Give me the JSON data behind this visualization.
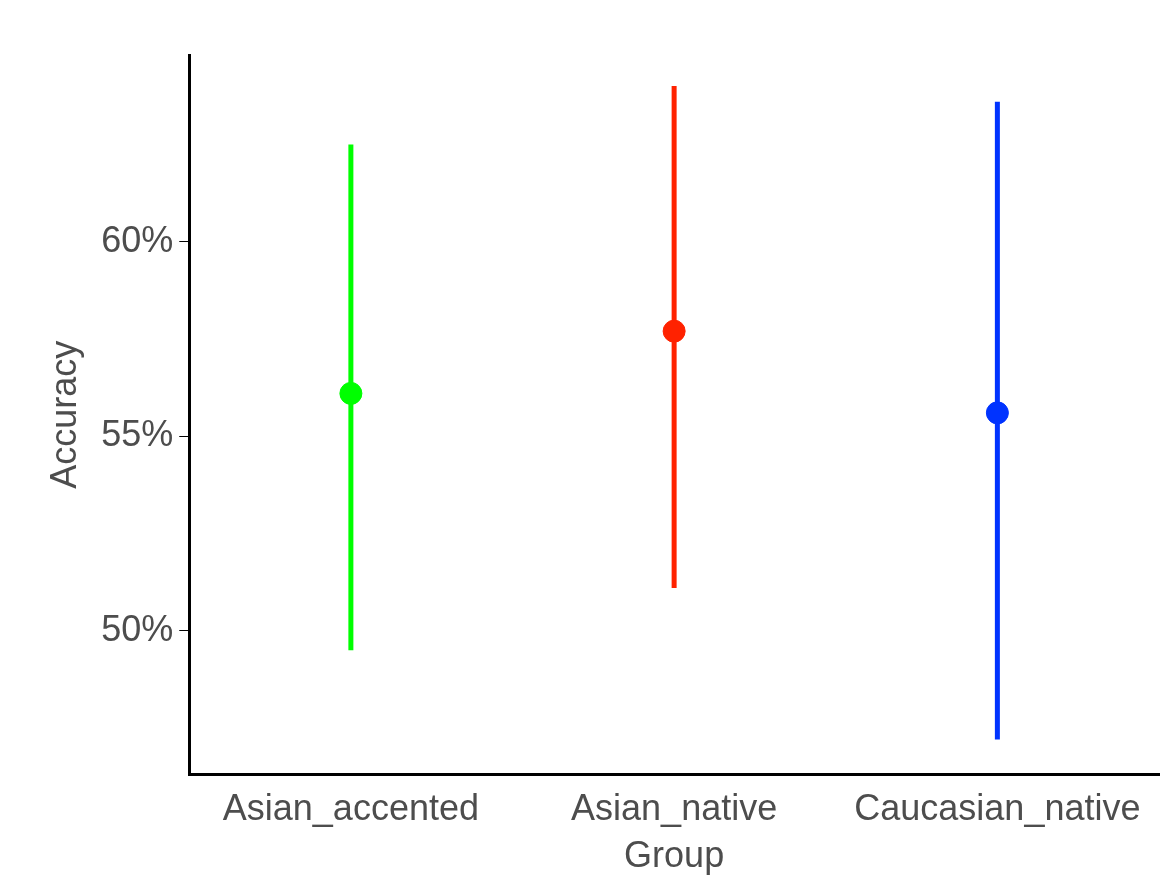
{
  "chart_data": {
    "type": "scatter",
    "xlabel": "Group",
    "ylabel": "Accuracy",
    "categories": [
      "Asian_accented",
      "Asian_native",
      "Caucasian_native"
    ],
    "values": [
      56.1,
      57.7,
      55.6
    ],
    "errors": [
      [
        49.5,
        62.5
      ],
      [
        51.1,
        64.0
      ],
      [
        47.2,
        63.6
      ]
    ],
    "colors": [
      "#00ff00",
      "#ff2200",
      "#0033ff"
    ],
    "ylim": [
      46.3,
      64.8
    ],
    "yticks": [
      {
        "value": 50,
        "label": "50%"
      },
      {
        "value": 55,
        "label": "55%"
      },
      {
        "value": 60,
        "label": "60%"
      }
    ],
    "marker": "circle",
    "grid": false,
    "legend": false
  }
}
